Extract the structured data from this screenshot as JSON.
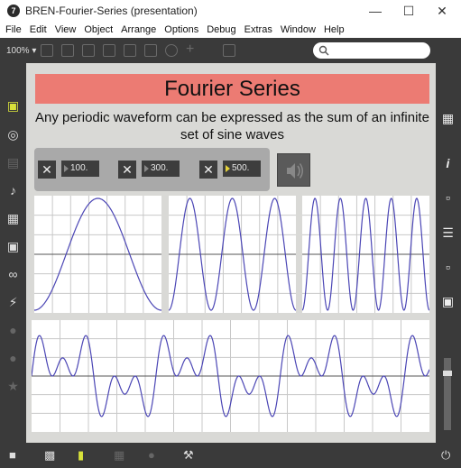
{
  "window": {
    "title": "BREN-Fourier-Series (presentation)",
    "app_icon_glyph": "7"
  },
  "menu": [
    "File",
    "Edit",
    "View",
    "Object",
    "Arrange",
    "Options",
    "Debug",
    "Extras",
    "Window",
    "Help"
  ],
  "toolbar": {
    "zoom": "100%"
  },
  "banner": {
    "title": "Fourier Series",
    "color": "#ec7b73"
  },
  "subtitle": "Any periodic waveform can be expressed as the sum of an infinite set of sine waves",
  "controls": [
    {
      "toggle": "✕",
      "freq": "100."
    },
    {
      "toggle": "✕",
      "freq": "300."
    },
    {
      "toggle": "✕",
      "freq": "500."
    }
  ],
  "icons": {
    "left": [
      "cube-icon",
      "target-icon",
      "film-icon",
      "music-note-icon",
      "step-icon",
      "image-icon",
      "paperclip-icon",
      "plug-icon",
      "vimeo-icon",
      "help-circle-icon",
      "star-icon"
    ],
    "right": [
      "grid-icon",
      "info-icon",
      "book-icon",
      "list-icon",
      "open-book-icon",
      "camera-icon",
      "slider-icon",
      "power-icon"
    ],
    "bottom": [
      "lock-icon",
      "windows-icon",
      "comment-icon",
      "grid-dots-icon",
      "add-user-icon",
      "wrench-icon"
    ]
  },
  "waveform_color": "#4b46b5"
}
